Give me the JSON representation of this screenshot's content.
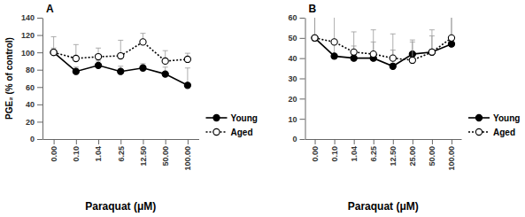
{
  "chart_data": [
    {
      "type": "line",
      "title": "A",
      "x_label": "Paraquat (μM)",
      "y_label": "PGE₂ (% of control)",
      "categories": [
        "0.00",
        "0.10",
        "1.04",
        "6.25",
        "12.50",
        "50.00",
        "100.00"
      ],
      "series": [
        {
          "name": "Young",
          "color": "#000000",
          "marker": "circle",
          "line_style": "solid",
          "values": [
            100,
            78,
            85,
            78,
            82,
            75,
            62
          ],
          "errors": [
            5,
            5,
            5,
            6,
            5,
            8,
            20
          ]
        },
        {
          "name": "Aged",
          "color": "#000000",
          "marker": "open-circle",
          "line_style": "dotted",
          "values": [
            100,
            93,
            95,
            96,
            112,
            90,
            92
          ],
          "errors": [
            18,
            16,
            10,
            18,
            10,
            12,
            7
          ]
        }
      ],
      "ylim": [
        0,
        140
      ],
      "yticks": [
        0,
        20,
        40,
        60,
        80,
        100,
        120,
        140
      ],
      "legend": "right"
    },
    {
      "type": "line",
      "title": "B",
      "x_label": "Paraquat (μM)",
      "categories": [
        "0.00",
        "0.10",
        "1.04",
        "6.25",
        "12.50",
        "25.00",
        "50.00",
        "100.00"
      ],
      "series": [
        {
          "name": "Young",
          "color": "#000000",
          "marker": "circle",
          "line_style": "solid",
          "values": [
            50,
            41,
            40,
            40,
            36,
            42,
            43,
            47
          ],
          "errors": [
            14,
            8,
            6,
            8,
            8,
            6,
            8,
            14
          ]
        },
        {
          "name": "Aged",
          "color": "#000000",
          "marker": "open-circle",
          "line_style": "dotted",
          "values": [
            50,
            48,
            43,
            42,
            40,
            39,
            43,
            50
          ],
          "errors": [
            14,
            18,
            10,
            12,
            12,
            10,
            11,
            16
          ]
        }
      ],
      "ylim": [
        0,
        60
      ],
      "yticks": [
        0,
        10,
        20,
        30,
        40,
        50,
        60
      ],
      "legend": "right"
    }
  ]
}
